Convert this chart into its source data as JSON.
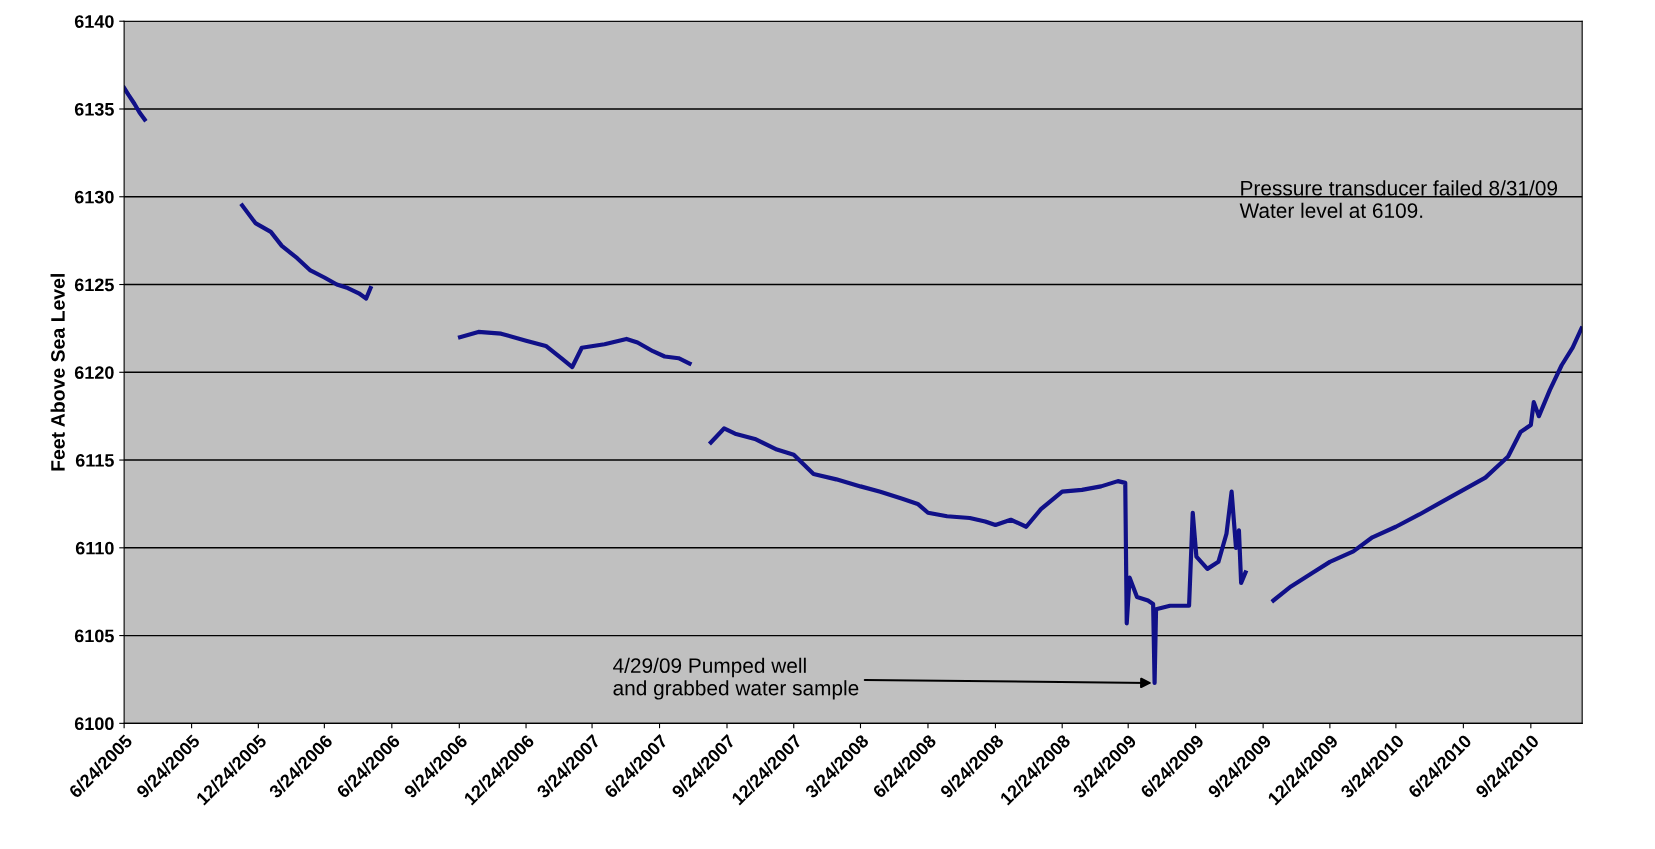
{
  "chart_data": {
    "type": "line",
    "ylabel": "Feet Above Sea Level",
    "x": [
      "2005-06-24",
      "2005-06-30",
      "2005-07-08",
      "2005-07-15",
      "2005-07-22",
      "2005-09-15",
      "2005-12-02",
      "2005-12-20",
      "2006-01-10",
      "2006-01-25",
      "2006-02-15",
      "2006-03-05",
      "2006-03-24",
      "2006-04-10",
      "2006-04-25",
      "2006-05-10",
      "2006-05-20",
      "2006-05-26",
      "2006-07-15",
      "2006-09-25",
      "2006-10-20",
      "2006-11-20",
      "2006-12-24",
      "2007-01-20",
      "2007-02-10",
      "2007-02-25",
      "2007-03-10",
      "2007-04-10",
      "2007-05-10",
      "2007-05-25",
      "2007-06-15",
      "2007-07-01",
      "2007-07-20",
      "2007-08-04",
      "2007-08-20",
      "2007-09-02",
      "2007-09-20",
      "2007-10-05",
      "2007-11-01",
      "2007-12-01",
      "2007-12-24",
      "2008-01-20",
      "2008-02-20",
      "2008-03-24",
      "2008-04-20",
      "2008-05-20",
      "2008-06-10",
      "2008-06-24",
      "2008-07-20",
      "2008-08-20",
      "2008-09-10",
      "2008-09-24",
      "2008-10-15",
      "2008-11-05",
      "2008-11-25",
      "2008-12-24",
      "2009-01-20",
      "2009-02-15",
      "2009-03-10",
      "2009-03-20",
      "2009-03-22",
      "2009-03-26",
      "2009-04-05",
      "2009-04-20",
      "2009-04-27",
      "2009-04-29",
      "2009-05-01",
      "2009-05-20",
      "2009-06-15",
      "2009-06-20",
      "2009-06-25",
      "2009-07-10",
      "2009-07-25",
      "2009-08-05",
      "2009-08-12",
      "2009-08-18",
      "2009-08-22",
      "2009-08-25",
      "2009-08-31",
      "2009-09-20",
      "2009-10-08",
      "2009-11-01",
      "2009-12-01",
      "2009-12-24",
      "2010-01-25",
      "2010-02-20",
      "2010-03-24",
      "2010-04-25",
      "2010-05-25",
      "2010-06-24",
      "2010-07-24",
      "2010-08-24",
      "2010-09-10",
      "2010-09-24",
      "2010-09-28",
      "2010-10-05",
      "2010-10-20",
      "2010-11-05",
      "2010-11-20",
      "2010-12-02"
    ],
    "series": [
      {
        "color": "#101088",
        "values": [
          6136.2,
          6135.8,
          6135.3,
          6134.8,
          6134.4,
          null,
          6129.5,
          6128.5,
          6128.0,
          6127.2,
          6126.5,
          6125.8,
          6125.4,
          6125.0,
          6124.8,
          6124.5,
          6124.2,
          6124.8,
          null,
          6122.0,
          6122.3,
          6122.2,
          6121.8,
          6121.5,
          6120.8,
          6120.3,
          6121.4,
          6121.6,
          6121.9,
          6121.7,
          6121.2,
          6120.9,
          6120.8,
          6120.5,
          null,
          6116.0,
          6116.8,
          6116.5,
          6116.2,
          6115.6,
          6115.3,
          6114.2,
          6113.9,
          6113.5,
          6113.2,
          6112.8,
          6112.5,
          6112.0,
          6111.8,
          6111.7,
          6111.5,
          6111.3,
          6111.6,
          6111.2,
          6112.2,
          6113.2,
          6113.3,
          6113.5,
          6113.8,
          6113.7,
          6105.7,
          6108.3,
          6107.2,
          6107.0,
          6106.8,
          6102.3,
          6106.5,
          6106.7,
          6106.7,
          6112.0,
          6109.5,
          6108.8,
          6109.2,
          6110.8,
          6113.2,
          6110.0,
          6111.0,
          6108.0,
          6108.6,
          null,
          6107.0,
          6107.8,
          6108.6,
          6109.2,
          6109.8,
          6110.6,
          6111.2,
          6111.9,
          6112.6,
          6113.3,
          6114.0,
          6115.2,
          6116.6,
          6117.0,
          6118.3,
          6117.5,
          6119.0,
          6120.4,
          6121.4,
          6122.5
        ]
      }
    ],
    "xlim": [
      "2005-06-24",
      "2010-12-03"
    ],
    "xticks": [
      {
        "value": "2005-06-24",
        "label": "6/24/2005"
      },
      {
        "value": "2005-09-24",
        "label": "9/24/2005"
      },
      {
        "value": "2005-12-24",
        "label": "12/24/2005"
      },
      {
        "value": "2006-03-24",
        "label": "3/24/2006"
      },
      {
        "value": "2006-06-24",
        "label": "6/24/2006"
      },
      {
        "value": "2006-09-24",
        "label": "9/24/2006"
      },
      {
        "value": "2006-12-24",
        "label": "12/24/2006"
      },
      {
        "value": "2007-03-24",
        "label": "3/24/2007"
      },
      {
        "value": "2007-06-24",
        "label": "6/24/2007"
      },
      {
        "value": "2007-09-24",
        "label": "9/24/2007"
      },
      {
        "value": "2007-12-24",
        "label": "12/24/2007"
      },
      {
        "value": "2008-03-24",
        "label": "3/24/2008"
      },
      {
        "value": "2008-06-24",
        "label": "6/24/2008"
      },
      {
        "value": "2008-09-24",
        "label": "9/24/2008"
      },
      {
        "value": "2008-12-24",
        "label": "12/24/2008"
      },
      {
        "value": "2009-03-24",
        "label": "3/24/2009"
      },
      {
        "value": "2009-06-24",
        "label": "6/24/2009"
      },
      {
        "value": "2009-09-24",
        "label": "9/24/2009"
      },
      {
        "value": "2009-12-24",
        "label": "12/24/2009"
      },
      {
        "value": "2010-03-24",
        "label": "3/24/2010"
      },
      {
        "value": "2010-06-24",
        "label": "6/24/2010"
      },
      {
        "value": "2010-09-24",
        "label": "9/24/2010"
      }
    ],
    "ylim": [
      6100,
      6140
    ],
    "yticks": [
      6100,
      6105,
      6110,
      6115,
      6120,
      6125,
      6130,
      6135,
      6140
    ],
    "grid": "y",
    "legend": false,
    "marker": "none",
    "line_style": "solid",
    "annotations": [
      "Pressure transducer failed 8/31/09\nWater level at 6109.",
      {
        "text": "4/29/09 Pumped well\nand grabbed water sample",
        "x": "2009-04-29",
        "y": 6102.3
      }
    ]
  }
}
